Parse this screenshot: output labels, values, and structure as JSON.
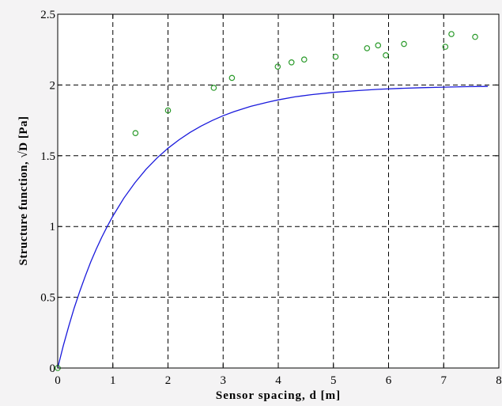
{
  "chart_data": {
    "type": "scatter",
    "xlabel": "Sensor spacing, d [m]",
    "ylabel": "Structure function, √D [Pa]",
    "xlim": [
      0,
      8
    ],
    "ylim": [
      0,
      2.5
    ],
    "grid": true,
    "x_ticks": [
      "0",
      "1",
      "2",
      "3",
      "4",
      "5",
      "6",
      "7",
      "8"
    ],
    "y_ticks": [
      "0",
      "0.5",
      "1",
      "1.5",
      "2",
      "2.5"
    ],
    "series": [
      {
        "kind": "points",
        "marker": "circle",
        "color": "#2a9a2a",
        "x": [
          0.0,
          1.41,
          2.0,
          2.83,
          3.16,
          3.99,
          4.24,
          4.47,
          5.04,
          5.61,
          5.81,
          5.95,
          6.28,
          7.03,
          7.14,
          7.57
        ],
        "y": [
          0.0,
          1.66,
          1.82,
          1.98,
          2.05,
          2.13,
          2.16,
          2.18,
          2.2,
          2.26,
          2.28,
          2.21,
          2.29,
          2.27,
          2.36,
          2.34
        ]
      },
      {
        "kind": "line",
        "color": "#1a1adc",
        "x": [
          0,
          0.1,
          0.2,
          0.3,
          0.4,
          0.5,
          0.6,
          0.7,
          0.8,
          0.9,
          1.0,
          1.2,
          1.4,
          1.6,
          1.8,
          2.0,
          2.2,
          2.4,
          2.6,
          2.8,
          3.0,
          3.2,
          3.5,
          3.8,
          4.0,
          4.3,
          4.6,
          5.0,
          5.4,
          5.8,
          6.2,
          6.6,
          7.0,
          7.4,
          7.8
        ],
        "y": [
          0.0,
          0.156,
          0.296,
          0.425,
          0.542,
          0.65,
          0.75,
          0.841,
          0.925,
          1.002,
          1.074,
          1.201,
          1.309,
          1.403,
          1.484,
          1.553,
          1.613,
          1.665,
          1.71,
          1.749,
          1.783,
          1.812,
          1.849,
          1.878,
          1.895,
          1.916,
          1.932,
          1.948,
          1.96,
          1.969,
          1.976,
          1.981,
          1.985,
          1.988,
          1.99
        ]
      }
    ]
  }
}
